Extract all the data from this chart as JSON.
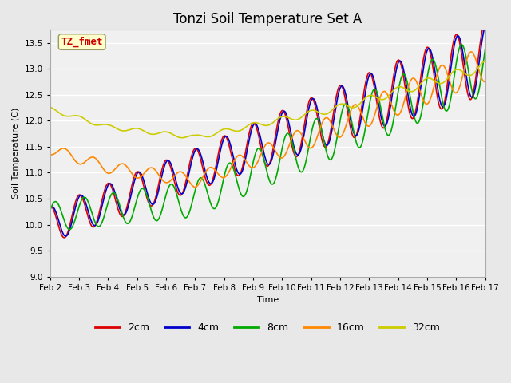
{
  "title": "Tonzi Soil Temperature Set A",
  "xlabel": "Time",
  "ylabel": "Soil Temperature (C)",
  "ylim": [
    9.0,
    13.75
  ],
  "yticks": [
    9.0,
    9.5,
    10.0,
    10.5,
    11.0,
    11.5,
    12.0,
    12.5,
    13.0,
    13.5
  ],
  "xtick_labels": [
    "Feb 2",
    "Feb 3",
    "Feb 4",
    "Feb 5",
    "Feb 6",
    "Feb 7",
    "Feb 8",
    "Feb 9",
    "Feb 10",
    "Feb 11",
    "Feb 12",
    "Feb 13",
    "Feb 14",
    "Feb 15",
    "Feb 16",
    "Feb 17"
  ],
  "series": {
    "2cm": {
      "color": "#dd0000",
      "lw": 1.2
    },
    "4cm": {
      "color": "#0000cc",
      "lw": 1.2
    },
    "8cm": {
      "color": "#00aa00",
      "lw": 1.2
    },
    "16cm": {
      "color": "#ff8800",
      "lw": 1.2
    },
    "32cm": {
      "color": "#cccc00",
      "lw": 1.2
    }
  },
  "legend_order": [
    "2cm",
    "4cm",
    "8cm",
    "16cm",
    "32cm"
  ],
  "annotation_text": "TZ_fmet",
  "annotation_color": "#cc0000",
  "annotation_bg": "#ffffcc",
  "annotation_border": "#999966",
  "bg_color": "#e8e8e8",
  "plot_bg": "#f0f0f0",
  "grid_color": "#ffffff",
  "title_fontsize": 12,
  "label_fontsize": 8,
  "tick_fontsize": 7.5
}
